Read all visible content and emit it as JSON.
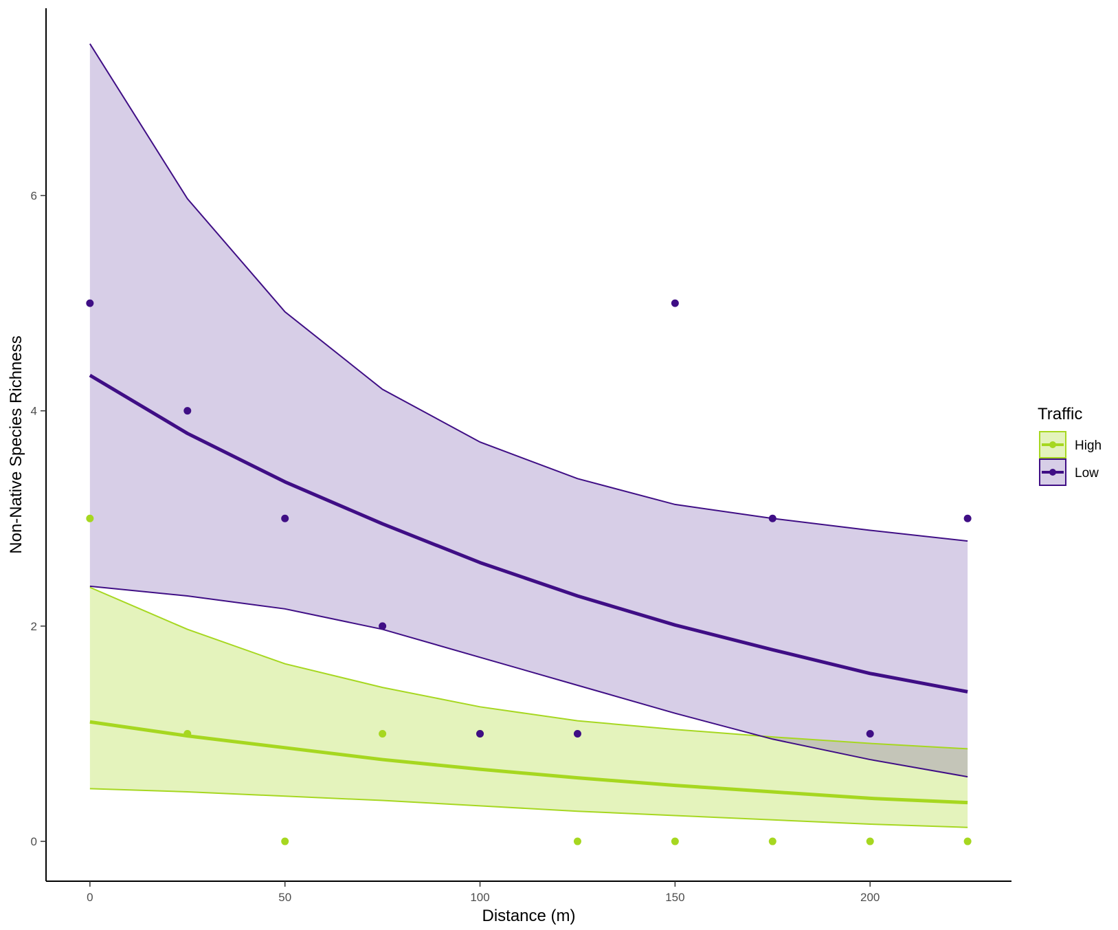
{
  "chart_data": {
    "type": "line",
    "xlabel": "Distance (m)",
    "ylabel": "Non-Native Species Richness",
    "xlim": [
      -11.25,
      236.25
    ],
    "ylim": [
      -0.37,
      7.74
    ],
    "x_ticks": [
      0,
      50,
      100,
      150,
      200
    ],
    "y_ticks": [
      0,
      2,
      4,
      6
    ],
    "grid": false,
    "legend": {
      "title": "Traffic",
      "position": "right"
    },
    "x": [
      0,
      25,
      50,
      75,
      100,
      125,
      150,
      175,
      200,
      225
    ],
    "series": [
      {
        "name": "High",
        "color": "#a6d720",
        "fill": "#a6d720",
        "fit": [
          1.11,
          0.98,
          0.87,
          0.76,
          0.67,
          0.59,
          0.52,
          0.46,
          0.4,
          0.36
        ],
        "lower": [
          0.49,
          0.46,
          0.42,
          0.38,
          0.33,
          0.28,
          0.24,
          0.2,
          0.16,
          0.13
        ],
        "upper": [
          2.36,
          1.97,
          1.65,
          1.43,
          1.25,
          1.12,
          1.04,
          0.97,
          0.91,
          0.86
        ],
        "points": [
          [
            0,
            3
          ],
          [
            25,
            1
          ],
          [
            50,
            0
          ],
          [
            75,
            1
          ],
          [
            100,
            1
          ],
          [
            125,
            0
          ],
          [
            150,
            0
          ],
          [
            175,
            0
          ],
          [
            200,
            0
          ],
          [
            225,
            0
          ]
        ]
      },
      {
        "name": "Low",
        "color": "#3f0e85",
        "fill": "#7b5cb1",
        "fit": [
          4.33,
          3.79,
          3.34,
          2.95,
          2.59,
          2.28,
          2.01,
          1.78,
          1.56,
          1.39
        ],
        "lower": [
          2.37,
          2.28,
          2.16,
          1.97,
          1.71,
          1.45,
          1.19,
          0.95,
          0.76,
          0.6
        ],
        "upper": [
          7.41,
          5.97,
          4.92,
          4.2,
          3.71,
          3.37,
          3.13,
          3.0,
          2.89,
          2.79
        ],
        "points": [
          [
            0,
            5
          ],
          [
            25,
            4
          ],
          [
            50,
            3
          ],
          [
            75,
            2
          ],
          [
            100,
            1
          ],
          [
            125,
            1
          ],
          [
            150,
            5
          ],
          [
            175,
            3
          ],
          [
            200,
            1
          ],
          [
            225,
            3
          ]
        ]
      }
    ]
  }
}
